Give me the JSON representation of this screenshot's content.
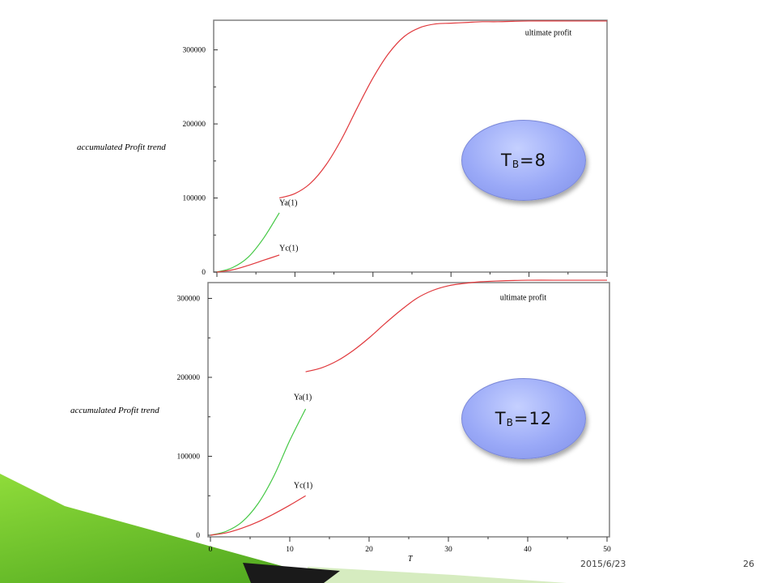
{
  "slide": {
    "date": "2015/6/23",
    "page_number": "26"
  },
  "colors": {
    "profit_curve": "#e0383c",
    "early_curve": "#44c844",
    "bubble": "#9aa9f7",
    "accent_green": "#5fb820"
  },
  "chart_data": [
    {
      "type": "line",
      "ylabel": "accumulated Profit trend",
      "xlim": [
        0,
        50
      ],
      "ylim": [
        0,
        340000
      ],
      "yticks": [
        0,
        100000,
        200000,
        300000
      ],
      "ytick_labels": [
        "0",
        "100000",
        "200000",
        "300000"
      ],
      "show_xticklabels": false,
      "badge": {
        "main": "T",
        "sub": "B",
        "suffix": "=8"
      },
      "series": [
        {
          "name": "Ya(1)",
          "color": "#44c844",
          "x": [
            0,
            2,
            4,
            6,
            8
          ],
          "y": [
            0,
            6000,
            20000,
            46000,
            80000
          ]
        },
        {
          "name": "Yc(1)",
          "color": "#e0383c",
          "x": [
            0,
            2,
            4,
            6,
            8
          ],
          "y": [
            0,
            3000,
            9000,
            16000,
            23000
          ]
        },
        {
          "name": "ultimate profit",
          "color": "#e0383c",
          "x": [
            8,
            10,
            12,
            14,
            16,
            18,
            20,
            22,
            24,
            26,
            28,
            30,
            32,
            34,
            36,
            40,
            45,
            50
          ],
          "y": [
            100000,
            106000,
            120000,
            145000,
            180000,
            222000,
            262000,
            295000,
            318000,
            330000,
            335000,
            336000,
            337000,
            338000,
            338000,
            339000,
            339000,
            339000
          ]
        }
      ],
      "labels": [
        {
          "text": "Ya(1)",
          "x": 8,
          "y": 90000
        },
        {
          "text": "Yc(1)",
          "x": 8,
          "y": 29000
        },
        {
          "text": "ultimate profit",
          "x": 39.5,
          "y": 320000
        }
      ]
    },
    {
      "type": "line",
      "xlabel": "T",
      "ylabel": "accumulated Profit trend",
      "xlim": [
        0,
        50
      ],
      "ylim": [
        0,
        320000
      ],
      "xticks": [
        0,
        10,
        20,
        30,
        40,
        50
      ],
      "xtick_labels": [
        "0",
        "10",
        "20",
        "30",
        "40",
        "50"
      ],
      "yticks": [
        0,
        100000,
        200000,
        300000
      ],
      "ytick_labels": [
        "0",
        "100000",
        "200000",
        "300000"
      ],
      "show_xticklabels": true,
      "badge": {
        "main": "T",
        "sub": "B",
        "suffix": "=12"
      },
      "series": [
        {
          "name": "Ya(1)",
          "color": "#44c844",
          "x": [
            0,
            2,
            4,
            6,
            8,
            10,
            12
          ],
          "y": [
            0,
            5000,
            17000,
            40000,
            75000,
            120000,
            160000
          ]
        },
        {
          "name": "Yc(1)",
          "color": "#e0383c",
          "x": [
            0,
            2,
            4,
            6,
            8,
            10,
            12
          ],
          "y": [
            0,
            3000,
            9000,
            17000,
            27000,
            38000,
            50000
          ]
        },
        {
          "name": "ultimate profit",
          "color": "#e0383c",
          "x": [
            12,
            14,
            16,
            18,
            20,
            22,
            24,
            26,
            28,
            30,
            32,
            34,
            36,
            40,
            45,
            50
          ],
          "y": [
            207000,
            212000,
            221000,
            234000,
            250000,
            268000,
            285000,
            300000,
            310000,
            316000,
            319000,
            321000,
            322000,
            323000,
            323000,
            323000
          ]
        }
      ],
      "labels": [
        {
          "text": "Ya(1)",
          "x": 10.5,
          "y": 172000
        },
        {
          "text": "Yc(1)",
          "x": 10.5,
          "y": 60000
        },
        {
          "text": "ultimate profit",
          "x": 36.5,
          "y": 298000
        }
      ]
    }
  ]
}
